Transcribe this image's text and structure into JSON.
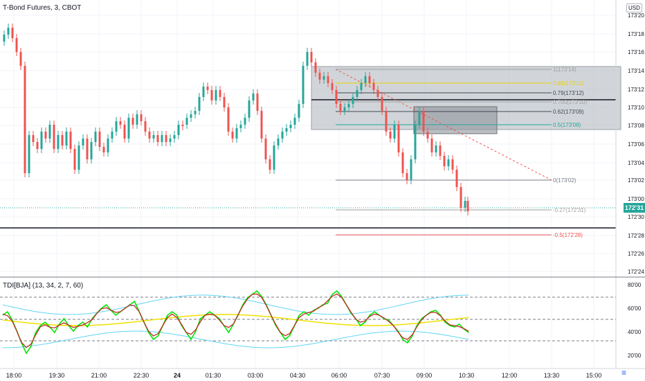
{
  "header": {
    "symbol": "T-Bond Futures, 3, CBOT",
    "currency": "USD",
    "last_price_label": "172'31"
  },
  "indicator": {
    "label": "TDI[BJA] (13, 34, 2, 7, 60)",
    "y_ticks": [
      "80'00",
      "60'00",
      "40'00",
      "20'00"
    ]
  },
  "colors": {
    "up": "#26a69a",
    "down": "#ef5350",
    "tdi_green": "#00e600",
    "tdi_red": "#c62828",
    "tdi_yellow": "#f0e000",
    "tdi_band": "#5fd5f5"
  },
  "chart_data": {
    "type": "candlestick",
    "price_ticks": [
      "173'20",
      "173'18",
      "173'16",
      "173'14",
      "173'12",
      "173'10",
      "173'08",
      "173'06",
      "173'04",
      "173'02",
      "173'00",
      "172'30",
      "172'28",
      "172'26",
      "172'24"
    ],
    "time_ticks": [
      "18:00",
      "19:30",
      "21:00",
      "22:30",
      "24",
      "01:30",
      "03:00",
      "04:30",
      "06:00",
      "07:30",
      "09:00",
      "10:30",
      "12:00",
      "13:30",
      "15:00"
    ],
    "fib_levels": [
      {
        "label": "1(173'14)",
        "color": "#9e9e9e"
      },
      {
        "label": "0.86(173'12)",
        "color": "#e6d200"
      },
      {
        "label": "0.79(173'12)",
        "color": "#434651"
      },
      {
        "label": "0.705(173'10)",
        "color": "#9e9e9e"
      },
      {
        "label": "0.62(173'09)",
        "color": "#434651"
      },
      {
        "label": "0.5(173'08)",
        "color": "#26a69a"
      },
      {
        "label": "0(173'02)",
        "color": "#787b86"
      },
      {
        "label": "-0.27(172'31)",
        "color": "#9e9e9e"
      },
      {
        "label": "-0.5(172'28)",
        "color": "#ef5350"
      }
    ]
  }
}
